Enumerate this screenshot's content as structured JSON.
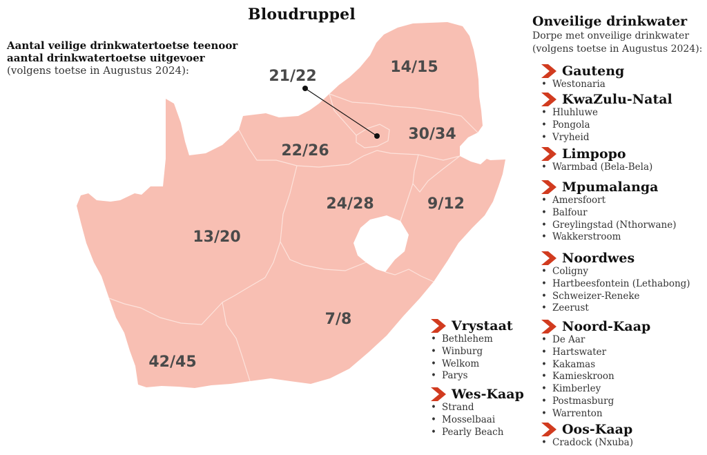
{
  "title": "Bloudruppel",
  "left_subtitle": {
    "bold_line1": "Aantal veilige drinkwatertoetse teenoor",
    "bold_line2": "aantal drinkwatertoetse uitgevoer",
    "note": "(volgens toetse in Augustus 2024):"
  },
  "map": {
    "fill_color": "#f8bfb3",
    "border_color": "#fde3dc",
    "pointer_color": "#111111",
    "labels": [
      {
        "id": "limpopo",
        "text": "14/15"
      },
      {
        "id": "gauteng",
        "text": "21/22"
      },
      {
        "id": "mpumalanga",
        "text": "30/34"
      },
      {
        "id": "noordwes",
        "text": "22/26"
      },
      {
        "id": "vrystaat",
        "text": "24/28"
      },
      {
        "id": "kwazulu-natal",
        "text": "9/12"
      },
      {
        "id": "noord-kaap",
        "text": "13/20"
      },
      {
        "id": "oos-kaap",
        "text": "7/8"
      },
      {
        "id": "wes-kaap",
        "text": "42/45"
      }
    ]
  },
  "legend": {
    "heading": "Onveilige drinkwater",
    "subheading_line1": "Dorpe met onveilige drinkwater",
    "subheading_line2": "(volgens toetse in Augustus 2024):",
    "chevron_color": "#d13b1f",
    "provinces": [
      {
        "id": "gauteng",
        "name": "Gauteng",
        "towns": [
          "Westonaria"
        ]
      },
      {
        "id": "kwazulu-natal",
        "name": "KwaZulu-Natal",
        "towns": [
          "Hluhluwe",
          "Pongola",
          "Vryheid"
        ]
      },
      {
        "id": "limpopo",
        "name": "Limpopo",
        "towns": [
          "Warmbad (Bela-Bela)"
        ]
      },
      {
        "id": "mpumalanga",
        "name": "Mpumalanga",
        "towns": [
          "Amersfoort",
          "Balfour",
          "Greylingstad (Nthorwane)",
          "Wakkerstroom"
        ]
      },
      {
        "id": "noordwes",
        "name": "Noordwes",
        "towns": [
          "Coligny",
          "Hartbeesfontein (Lethabong)",
          "Schweizer-Reneke",
          "Zeerust"
        ]
      },
      {
        "id": "noord-kaap",
        "name": "Noord-Kaap",
        "towns": [
          "De Aar",
          "Hartswater",
          "Kakamas",
          "Kamieskroon",
          "Kimberley",
          "Postmasburg",
          "Warrenton"
        ]
      },
      {
        "id": "oos-kaap",
        "name": "Oos-Kaap",
        "towns": [
          "Cradock (Nxuba)"
        ]
      },
      {
        "id": "vrystaat",
        "name": "Vrystaat",
        "towns": [
          "Bethlehem",
          "Winburg",
          "Welkom",
          "Parys"
        ]
      },
      {
        "id": "wes-kaap",
        "name": "Wes-Kaap",
        "towns": [
          "Strand",
          "Mosselbaai",
          "Pearly Beach"
        ]
      }
    ]
  }
}
